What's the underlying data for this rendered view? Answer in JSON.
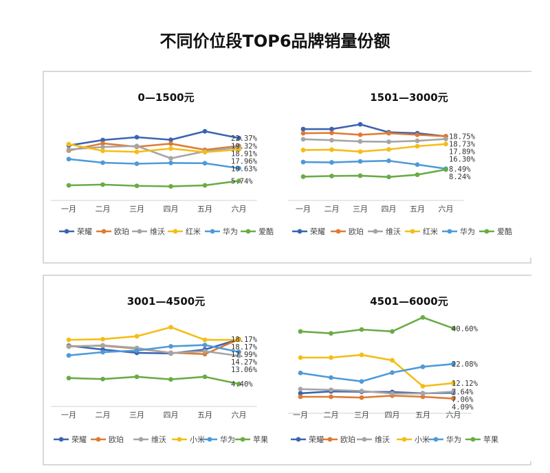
{
  "title": "不同价位段TOP6品牌销量份额",
  "colors": {
    "荣耀": "#3a64b0",
    "欧珀": "#e07a32",
    "维沃": "#a5a5a5",
    "红米": "#f4bd17",
    "小米": "#f4bd17",
    "华为": "#4f9ad8",
    "爱酷": "#6aab45",
    "苹果": "#6aab45"
  },
  "chart_data": [
    {
      "type": "line",
      "title": "0—1500元",
      "categories": [
        "一月",
        "二月",
        "三月",
        "四月",
        "五月",
        "六月"
      ],
      "ylim": [
        0,
        32
      ],
      "series": [
        {
          "name": "荣耀",
          "values": [
            19.5,
            21.6,
            22.7,
            21.7,
            25.0,
            22.37
          ],
          "label": "22.37%"
        },
        {
          "name": "欧珀",
          "values": [
            17.5,
            20.3,
            19.0,
            20.2,
            17.8,
            19.32
          ],
          "label": "19.32%"
        },
        {
          "name": "维沃",
          "values": [
            17.9,
            18.9,
            19.3,
            14.5,
            17.2,
            18.91
          ],
          "label": "18.91%"
        },
        {
          "name": "红米",
          "values": [
            20.0,
            17.4,
            17.0,
            18.3,
            16.9,
            17.96
          ],
          "label": "17.96%"
        },
        {
          "name": "华为",
          "values": [
            14.2,
            12.8,
            12.4,
            12.7,
            12.6,
            10.63
          ],
          "label": "10.63%"
        },
        {
          "name": "爱酷",
          "values": [
            4.0,
            4.3,
            3.8,
            3.6,
            4.0,
            5.74
          ],
          "label": "5.74%"
        }
      ]
    },
    {
      "type": "line",
      "title": "1501—3000元",
      "categories": [
        "一月",
        "二月",
        "三月",
        "四月",
        "五月",
        "六月"
      ],
      "ylim": [
        0,
        26
      ],
      "series": [
        {
          "name": "荣耀",
          "values": [
            21.0,
            21.0,
            22.5,
            20.0,
            19.7,
            18.73
          ],
          "label": "18.73%"
        },
        {
          "name": "欧珀",
          "values": [
            19.7,
            19.8,
            19.2,
            19.7,
            19.2,
            18.75
          ],
          "label": "18.75%"
        },
        {
          "name": "维沃",
          "values": [
            17.8,
            17.5,
            17.1,
            17.0,
            17.3,
            17.89
          ],
          "label": "17.89%"
        },
        {
          "name": "红米",
          "values": [
            14.4,
            14.5,
            13.9,
            14.6,
            15.6,
            16.3
          ],
          "label": "16.30%"
        },
        {
          "name": "华为",
          "values": [
            10.6,
            10.5,
            10.8,
            11.0,
            9.8,
            8.49
          ],
          "label": "8.49%"
        },
        {
          "name": "爱酷",
          "values": [
            6.0,
            6.2,
            6.3,
            5.9,
            6.6,
            8.24
          ],
          "label": "8.24%"
        }
      ]
    },
    {
      "type": "line",
      "title": "3001—4500元",
      "categories": [
        "一月",
        "二月",
        "三月",
        "四月",
        "五月",
        "六月"
      ],
      "ylim": [
        0,
        25
      ],
      "series": [
        {
          "name": "荣耀",
          "values": [
            16.2,
            15.0,
            14.0,
            13.8,
            15.0,
            18.17
          ],
          "label": "18.17%"
        },
        {
          "name": "欧珀",
          "values": [
            16.0,
            16.2,
            15.3,
            14.0,
            13.6,
            18.17
          ],
          "label": "18.17%"
        },
        {
          "name": "维沃",
          "values": [
            15.9,
            16.3,
            15.5,
            13.9,
            14.5,
            13.06
          ],
          "label": "13.06%"
        },
        {
          "name": "小米",
          "values": [
            18.0,
            18.2,
            19.1,
            21.9,
            18.0,
            17.99
          ],
          "label": "17.99%"
        },
        {
          "name": "华为",
          "values": [
            13.2,
            14.2,
            14.7,
            16.0,
            16.4,
            14.27
          ],
          "label": "14.27%"
        },
        {
          "name": "苹果",
          "values": [
            6.2,
            5.9,
            6.6,
            5.8,
            6.6,
            4.4
          ],
          "label": "4.40%"
        }
      ]
    },
    {
      "type": "line",
      "title": "4501—6000元",
      "categories": [
        "一月",
        "二月",
        "三月",
        "四月",
        "五月",
        "六月"
      ],
      "ylim": [
        0,
        50
      ],
      "series": [
        {
          "name": "荣耀",
          "values": [
            6.8,
            7.8,
            7.6,
            7.5,
            6.8,
            7.06
          ],
          "label": "7.06%"
        },
        {
          "name": "欧珀",
          "values": [
            5.0,
            5.0,
            4.6,
            5.6,
            5.0,
            4.09
          ],
          "label": "4.09%"
        },
        {
          "name": "维沃",
          "values": [
            9.0,
            8.6,
            8.0,
            6.7,
            6.7,
            7.64
          ],
          "label": "7.64%"
        },
        {
          "name": "小米",
          "values": [
            25.4,
            25.4,
            26.8,
            24.0,
            10.5,
            12.12
          ],
          "label": "12.12%"
        },
        {
          "name": "华为",
          "values": [
            17.4,
            15.0,
            13.0,
            17.6,
            20.6,
            22.08
          ],
          "label": "22.08%"
        },
        {
          "name": "苹果",
          "values": [
            39.0,
            38.0,
            40.0,
            39.0,
            46.3,
            40.6
          ],
          "label": "40.60%"
        }
      ]
    }
  ]
}
